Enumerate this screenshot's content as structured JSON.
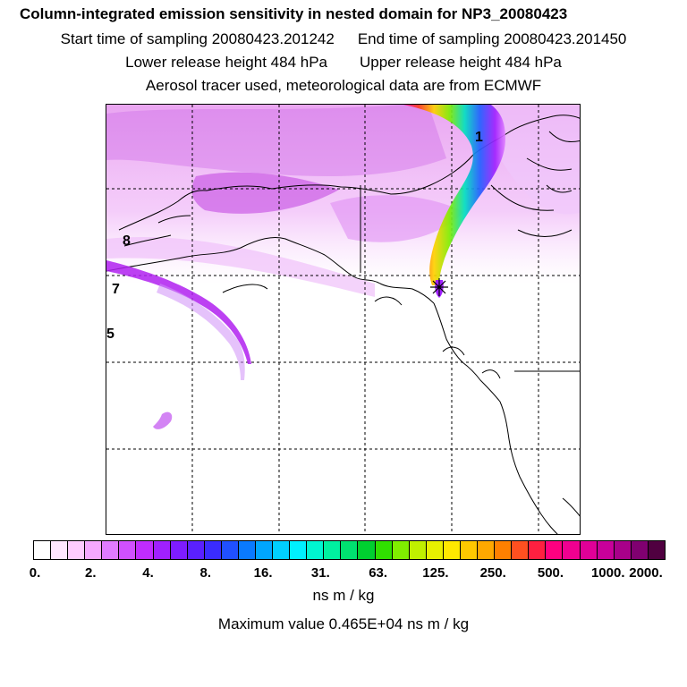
{
  "header": {
    "title": "Column-integrated emission sensitivity in nested domain for NP3_20080423",
    "start_label": "Start time of sampling 20080423.201242",
    "end_label": "End time of sampling 20080423.201450",
    "lower_label": "Lower release height  484 hPa",
    "upper_label": "Upper release height  484 hPa",
    "tracer_label": "Aerosol tracer used, meteorological data are from ECMWF"
  },
  "map": {
    "plume_labels": [
      {
        "id": "1",
        "text": "1"
      },
      {
        "id": "8",
        "text": "8"
      },
      {
        "id": "7",
        "text": "7"
      },
      {
        "id": "5",
        "text": "5"
      }
    ],
    "release_marker": "star"
  },
  "colorbar": {
    "colors": [
      "#ffffff",
      "#ffe6ff",
      "#ffccff",
      "#f5a8ff",
      "#e07bff",
      "#d050ff",
      "#c02cff",
      "#a020ff",
      "#7e1cff",
      "#5a20ff",
      "#3a2cff",
      "#2050ff",
      "#0a7aff",
      "#00a6ff",
      "#00cfff",
      "#00f0ff",
      "#00f5d0",
      "#00f0a0",
      "#00e070",
      "#00d030",
      "#30e000",
      "#80ee00",
      "#c0f000",
      "#e8f000",
      "#ffe800",
      "#ffc800",
      "#ffa800",
      "#ff8000",
      "#ff5020",
      "#ff2040",
      "#ff0080",
      "#f00090",
      "#e00098",
      "#c8009a",
      "#a8008a",
      "#800070",
      "#500040"
    ],
    "ticks": [
      "0.",
      "2.",
      "4.",
      "8.",
      "16.",
      "31.",
      "63.",
      "125.",
      "250.",
      "500.",
      "1000.",
      "2000."
    ],
    "units": "ns m / kg",
    "max_value": "Maximum value  0.465E+04 ns m / kg"
  }
}
